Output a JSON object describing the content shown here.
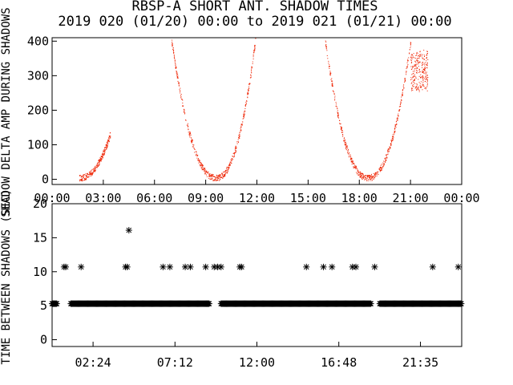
{
  "chart_data": [
    {
      "type": "scatter",
      "title": "RBSP-A SHORT ANT. SHADOW TIMES",
      "subtitle": "2019 020 (01/20) 00:00 to 2019 021 (01/21) 00:00",
      "xlabel": "",
      "ylabel": "SHADOW DELTA AMP DURING SHADOWS",
      "xlim": [
        0,
        24
      ],
      "ylim": [
        -15,
        410
      ],
      "x_ticks": [
        "00:00",
        "03:00",
        "06:00",
        "09:00",
        "12:00",
        "15:00",
        "18:00",
        "21:00",
        "00:00"
      ],
      "y_ticks": [
        "0",
        "100",
        "200",
        "300",
        "400"
      ],
      "marker_color": "#ee2200",
      "arcs": [
        {
          "t_min": 1.6,
          "t_max": 3.4,
          "side": "left",
          "y_low": 5,
          "y_high": 130
        },
        {
          "t_min": 7.0,
          "t_max": 9.6,
          "side": "right",
          "y_low": 5,
          "y_high": 400
        },
        {
          "t_min": 9.6,
          "t_max": 11.9,
          "side": "left",
          "y_low": 5,
          "y_high": 400
        },
        {
          "t_min": 16.0,
          "t_max": 18.5,
          "side": "right",
          "y_low": 5,
          "y_high": 400
        },
        {
          "t_min": 18.5,
          "t_max": 21.0,
          "side": "left",
          "y_low": 5,
          "y_high": 400
        },
        {
          "t_min": 21.0,
          "t_max": 22.0,
          "side": "flat",
          "y_low": 260,
          "y_high": 370
        }
      ]
    },
    {
      "type": "scatter",
      "title": "",
      "xlabel": "",
      "ylabel": "TIME BETWEEN SHADOWS (SEC)",
      "xlim": [
        0,
        24
      ],
      "ylim": [
        -1,
        20
      ],
      "x_ticks": [
        "02:24",
        "07:12",
        "12:00",
        "16:48",
        "21:35"
      ],
      "y_ticks": [
        "0",
        "5",
        "10",
        "15",
        "20"
      ],
      "marker": "*",
      "marker_color": "#000000",
      "baseline_value": 5.3,
      "baseline_segments": [
        [
          0.0,
          0.3
        ],
        [
          1.1,
          9.2
        ],
        [
          9.9,
          18.7
        ],
        [
          19.2,
          24.0
        ]
      ],
      "points": [
        {
          "x": 0.7,
          "y": 10.7
        },
        {
          "x": 0.8,
          "y": 10.7
        },
        {
          "x": 1.7,
          "y": 10.7
        },
        {
          "x": 4.3,
          "y": 10.7
        },
        {
          "x": 4.4,
          "y": 10.7
        },
        {
          "x": 4.5,
          "y": 16.1
        },
        {
          "x": 6.5,
          "y": 10.7
        },
        {
          "x": 6.9,
          "y": 10.7
        },
        {
          "x": 7.8,
          "y": 10.7
        },
        {
          "x": 8.1,
          "y": 10.7
        },
        {
          "x": 9.0,
          "y": 10.7
        },
        {
          "x": 9.5,
          "y": 10.7
        },
        {
          "x": 9.7,
          "y": 10.7
        },
        {
          "x": 9.9,
          "y": 10.7
        },
        {
          "x": 11.0,
          "y": 10.7
        },
        {
          "x": 11.1,
          "y": 10.7
        },
        {
          "x": 14.9,
          "y": 10.7
        },
        {
          "x": 15.9,
          "y": 10.7
        },
        {
          "x": 16.4,
          "y": 10.7
        },
        {
          "x": 17.6,
          "y": 10.7
        },
        {
          "x": 17.8,
          "y": 10.7
        },
        {
          "x": 18.9,
          "y": 10.7
        },
        {
          "x": 22.3,
          "y": 10.7
        },
        {
          "x": 23.8,
          "y": 10.7
        }
      ]
    }
  ]
}
